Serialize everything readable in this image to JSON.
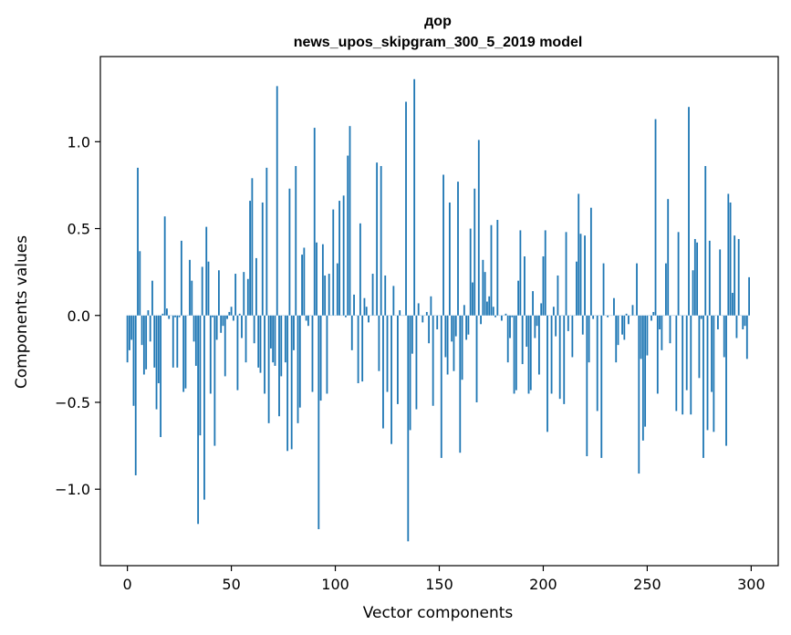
{
  "chart_data": {
    "type": "bar",
    "title": "дор",
    "subtitle": "news_upos_skipgram_300_5_2019 model",
    "xlabel": "Vector components",
    "ylabel": "Components values",
    "xlim": [
      -13,
      313
    ],
    "ylim": [
      -1.44,
      1.49
    ],
    "xticks": [
      0,
      50,
      100,
      150,
      200,
      250,
      300
    ],
    "xtick_labels": [
      "0",
      "50",
      "100",
      "150",
      "200",
      "250",
      "300"
    ],
    "yticks": [
      -1.0,
      -0.5,
      0.0,
      0.5,
      1.0
    ],
    "ytick_labels": [
      "−1.0",
      "−0.5",
      "0.0",
      "0.5",
      "1.0"
    ],
    "grid": false,
    "bar_color": "#1f77b4",
    "values": [
      -0.27,
      -0.2,
      -0.14,
      -0.52,
      -0.92,
      0.85,
      0.37,
      -0.17,
      -0.34,
      -0.31,
      0.03,
      -0.15,
      0.2,
      -0.3,
      -0.54,
      -0.39,
      -0.7,
      0.01,
      0.57,
      0.04,
      -0.02,
      0.0,
      -0.3,
      -0.01,
      -0.3,
      -0.01,
      0.43,
      -0.44,
      -0.42,
      0.0,
      0.32,
      0.2,
      -0.15,
      -0.29,
      -1.2,
      -0.69,
      0.28,
      -1.06,
      0.51,
      0.31,
      -0.45,
      -0.01,
      -0.75,
      -0.14,
      0.26,
      -0.1,
      -0.06,
      -0.35,
      -0.02,
      0.02,
      0.05,
      -0.03,
      0.24,
      -0.43,
      0.01,
      -0.13,
      0.25,
      -0.27,
      0.21,
      0.66,
      0.79,
      -0.16,
      0.33,
      -0.3,
      -0.33,
      0.65,
      -0.45,
      0.85,
      -0.62,
      -0.19,
      -0.27,
      -0.29,
      1.32,
      -0.58,
      -0.35,
      0.0,
      -0.27,
      -0.78,
      0.73,
      -0.77,
      -0.2,
      0.86,
      -0.62,
      -0.53,
      0.35,
      0.39,
      -0.03,
      -0.06,
      0.0,
      -0.44,
      1.08,
      0.42,
      -1.23,
      -0.49,
      0.41,
      0.23,
      -0.45,
      0.24,
      0.0,
      0.61,
      0.0,
      0.3,
      0.66,
      0.0,
      0.69,
      -0.01,
      0.92,
      1.09,
      -0.2,
      0.12,
      0.0,
      -0.39,
      0.53,
      -0.38,
      0.1,
      0.05,
      -0.04,
      0.0,
      0.24,
      0.0,
      0.88,
      -0.32,
      0.86,
      -0.65,
      0.23,
      -0.44,
      0.0,
      -0.74,
      0.17,
      0.0,
      -0.51,
      0.03,
      0.0,
      0.0,
      1.23,
      -1.3,
      -0.66,
      -0.22,
      1.36,
      -0.54,
      0.07,
      0.0,
      -0.04,
      0.0,
      0.02,
      -0.16,
      0.11,
      -0.52,
      0.0,
      -0.08,
      0.0,
      -0.82,
      0.81,
      -0.24,
      -0.34,
      0.65,
      -0.15,
      -0.32,
      -0.12,
      0.77,
      -0.79,
      -0.37,
      0.06,
      -0.14,
      -0.11,
      0.5,
      0.19,
      0.73,
      -0.5,
      1.01,
      -0.05,
      0.32,
      0.25,
      0.08,
      0.11,
      0.52,
      0.05,
      -0.01,
      0.55,
      0.0,
      -0.03,
      0.0,
      0.01,
      -0.27,
      -0.13,
      -0.01,
      -0.45,
      -0.43,
      0.2,
      0.49,
      -0.28,
      0.34,
      -0.18,
      -0.45,
      -0.43,
      0.14,
      -0.13,
      -0.06,
      -0.34,
      0.07,
      0.34,
      0.49,
      -0.67,
      0.0,
      -0.45,
      0.05,
      -0.12,
      0.23,
      -0.48,
      0.0,
      -0.51,
      0.48,
      -0.09,
      0.0,
      -0.24,
      0.0,
      0.31,
      0.7,
      0.47,
      -0.11,
      0.46,
      -0.81,
      -0.27,
      0.62,
      -0.02,
      0.0,
      -0.55,
      0.0,
      -0.82,
      0.3,
      0.0,
      -0.01,
      0.0,
      0.0,
      0.1,
      -0.27,
      -0.17,
      0.0,
      -0.11,
      -0.14,
      0.01,
      -0.05,
      0.0,
      0.06,
      0.0,
      0.3,
      -0.91,
      -0.25,
      -0.72,
      -0.64,
      -0.23,
      0.0,
      -0.03,
      0.02,
      1.13,
      -0.45,
      -0.08,
      -0.2,
      0.0,
      0.3,
      0.67,
      -0.16,
      0.0,
      0.0,
      -0.55,
      0.48,
      0.0,
      -0.57,
      0.0,
      -0.43,
      1.2,
      -0.57,
      0.26,
      0.44,
      0.42,
      -0.36,
      -0.02,
      -0.82,
      0.86,
      -0.66,
      0.43,
      -0.44,
      -0.67,
      0.0,
      -0.08,
      0.38,
      0.0,
      -0.24,
      -0.75,
      0.7,
      0.65,
      0.13,
      0.46,
      -0.13,
      0.44,
      0.0,
      -0.08,
      -0.06,
      -0.25,
      0.22
    ]
  }
}
